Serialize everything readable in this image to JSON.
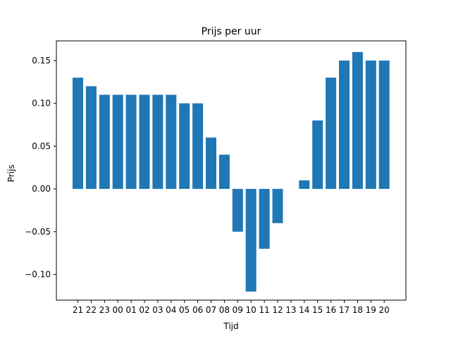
{
  "chart_data": {
    "type": "bar",
    "title": "Prijs per uur",
    "xlabel": "Tijd",
    "ylabel": "Prijs",
    "categories": [
      "21",
      "22",
      "23",
      "00",
      "01",
      "02",
      "03",
      "04",
      "05",
      "06",
      "07",
      "08",
      "09",
      "10",
      "11",
      "12",
      "13",
      "14",
      "15",
      "16",
      "17",
      "18",
      "19",
      "20"
    ],
    "values": [
      0.13,
      0.12,
      0.11,
      0.11,
      0.11,
      0.11,
      0.11,
      0.11,
      0.1,
      0.1,
      0.06,
      0.04,
      -0.05,
      -0.12,
      -0.07,
      -0.04,
      0.0,
      0.01,
      0.08,
      0.13,
      0.15,
      0.16,
      0.15,
      0.15
    ],
    "ylim": [
      -0.13,
      0.173
    ],
    "yticks": [
      -0.1,
      -0.05,
      0.0,
      0.05,
      0.1,
      0.15
    ],
    "ytick_labels": [
      "−0.10",
      "−0.05",
      "0.00",
      "0.05",
      "0.10",
      "0.15"
    ],
    "bar_color": "#1f77b4",
    "grid": false,
    "legend": "none"
  }
}
